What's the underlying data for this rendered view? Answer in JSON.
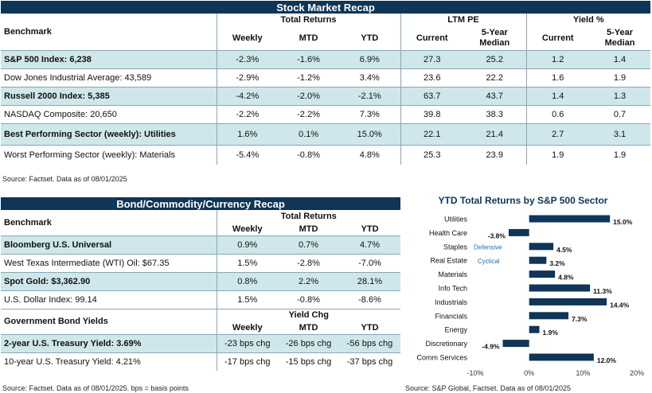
{
  "stock_recap": {
    "title": "Stock Market Recap",
    "group_headers": {
      "total_returns": "Total Returns",
      "ltm_pe": "LTM PE",
      "yield": "Yield %"
    },
    "col_headers": {
      "benchmark": "Benchmark",
      "weekly": "Weekly",
      "mtd": "MTD",
      "ytd": "YTD",
      "current": "Current",
      "median": "5-Year Median",
      "ycurrent": "Current",
      "ymedian": "5-Year Median"
    },
    "rows": [
      {
        "name": "S&P 500 Index: 6,238",
        "weekly": "-2.3%",
        "mtd": "-1.6%",
        "ytd": "6.9%",
        "pe_current": "27.3",
        "pe_median": "25.2",
        "y_current": "1.2",
        "y_median": "1.4"
      },
      {
        "name": "Dow Jones Industrial Average: 43,589",
        "weekly": "-2.9%",
        "mtd": "-1.2%",
        "ytd": "3.4%",
        "pe_current": "23.6",
        "pe_median": "22.2",
        "y_current": "1.6",
        "y_median": "1.9"
      },
      {
        "name": "Russell 2000 Index: 5,385",
        "weekly": "-4.2%",
        "mtd": "-2.0%",
        "ytd": "-2.1%",
        "pe_current": "63.7",
        "pe_median": "43.7",
        "y_current": "1.4",
        "y_median": "1.3"
      },
      {
        "name": "NASDAQ Composite: 20,650",
        "weekly": "-2.2%",
        "mtd": "-2.2%",
        "ytd": "7.3%",
        "pe_current": "39.8",
        "pe_median": "38.3",
        "y_current": "0.6",
        "y_median": "0.7"
      },
      {
        "name": "Best Performing Sector (weekly): Utilities",
        "weekly": "1.6%",
        "mtd": "0.1%",
        "ytd": "15.0%",
        "pe_current": "22.1",
        "pe_median": "21.4",
        "y_current": "2.7",
        "y_median": "3.1"
      },
      {
        "name": "Worst Performing Sector (weekly): Materials",
        "weekly": "-5.4%",
        "mtd": "-0.8%",
        "ytd": "4.8%",
        "pe_current": "25.3",
        "pe_median": "23.9",
        "y_current": "1.9",
        "y_median": "1.9"
      }
    ],
    "source": "Source: Factset. Data as of 08/01/2025"
  },
  "bond_recap": {
    "title": "Bond/Commodity/Currency Recap",
    "group_header": "Total Returns",
    "col_headers": {
      "benchmark": "Benchmark",
      "weekly": "Weekly",
      "mtd": "MTD",
      "ytd": "YTD"
    },
    "rows": [
      {
        "name": "Bloomberg U.S. Universal",
        "weekly": "0.9%",
        "mtd": "0.7%",
        "ytd": "4.7%"
      },
      {
        "name": "West Texas Intermediate (WTI) Oil: $67.35",
        "weekly": "1.5%",
        "mtd": "-2.8%",
        "ytd": "-7.0%"
      },
      {
        "name": "Spot Gold: $3,362.90",
        "weekly": "0.8%",
        "mtd": "2.2%",
        "ytd": "28.1%"
      },
      {
        "name": "U.S. Dollar Index: 99.14",
        "weekly": "1.5%",
        "mtd": "-0.8%",
        "ytd": "-8.6%"
      }
    ],
    "gov_section": {
      "label": "Government Bond Yields",
      "group_header": "Yield Chg",
      "col_headers": {
        "weekly": "Weekly",
        "mtd": "MTD",
        "ytd": "YTD"
      },
      "rows": [
        {
          "name": "2-year U.S. Treasury Yield: 3.69%",
          "weekly": "-23 bps chg",
          "mtd": "-26 bps chg",
          "ytd": "-56 bps chg"
        },
        {
          "name": "10-year U.S. Treasury Yield: 4.21%",
          "weekly": "-17 bps chg",
          "mtd": "-15 bps chg",
          "ytd": "-37 bps chg"
        }
      ]
    },
    "source": "Source: Factset. Data as of 08/01/2025. bps = basis points"
  },
  "chart_data": {
    "type": "bar",
    "orientation": "horizontal",
    "title": "YTD Total Returns by S&P 500 Sector",
    "categories": [
      "Utilities",
      "Health Care",
      "Staples",
      "Real Estate",
      "Materials",
      "Info Tech",
      "Industrials",
      "Financials",
      "Energy",
      "Discretionary",
      "Comm Services"
    ],
    "values": [
      15.0,
      -3.8,
      4.5,
      3.2,
      4.8,
      11.3,
      14.4,
      7.3,
      1.9,
      -4.9,
      12.0
    ],
    "value_labels": [
      "15.0%",
      "-3.8%",
      "4.5%",
      "3.2%",
      "4.8%",
      "11.3%",
      "14.4%",
      "7.3%",
      "1.9%",
      "-4.9%",
      "12.0%"
    ],
    "xlim": [
      -10,
      20
    ],
    "xticks": [
      -10,
      0,
      10,
      20
    ],
    "xtick_labels": [
      "-10%",
      "0%",
      "10%",
      "20%"
    ],
    "group_labels": {
      "defensive": "Defensive",
      "cyclical": "Cyclical"
    },
    "bar_color": "#0f3557",
    "group_label_color": "#1f6fb0",
    "source": "Source: S&P Global, Factset. Data as of 08/01/2025"
  }
}
